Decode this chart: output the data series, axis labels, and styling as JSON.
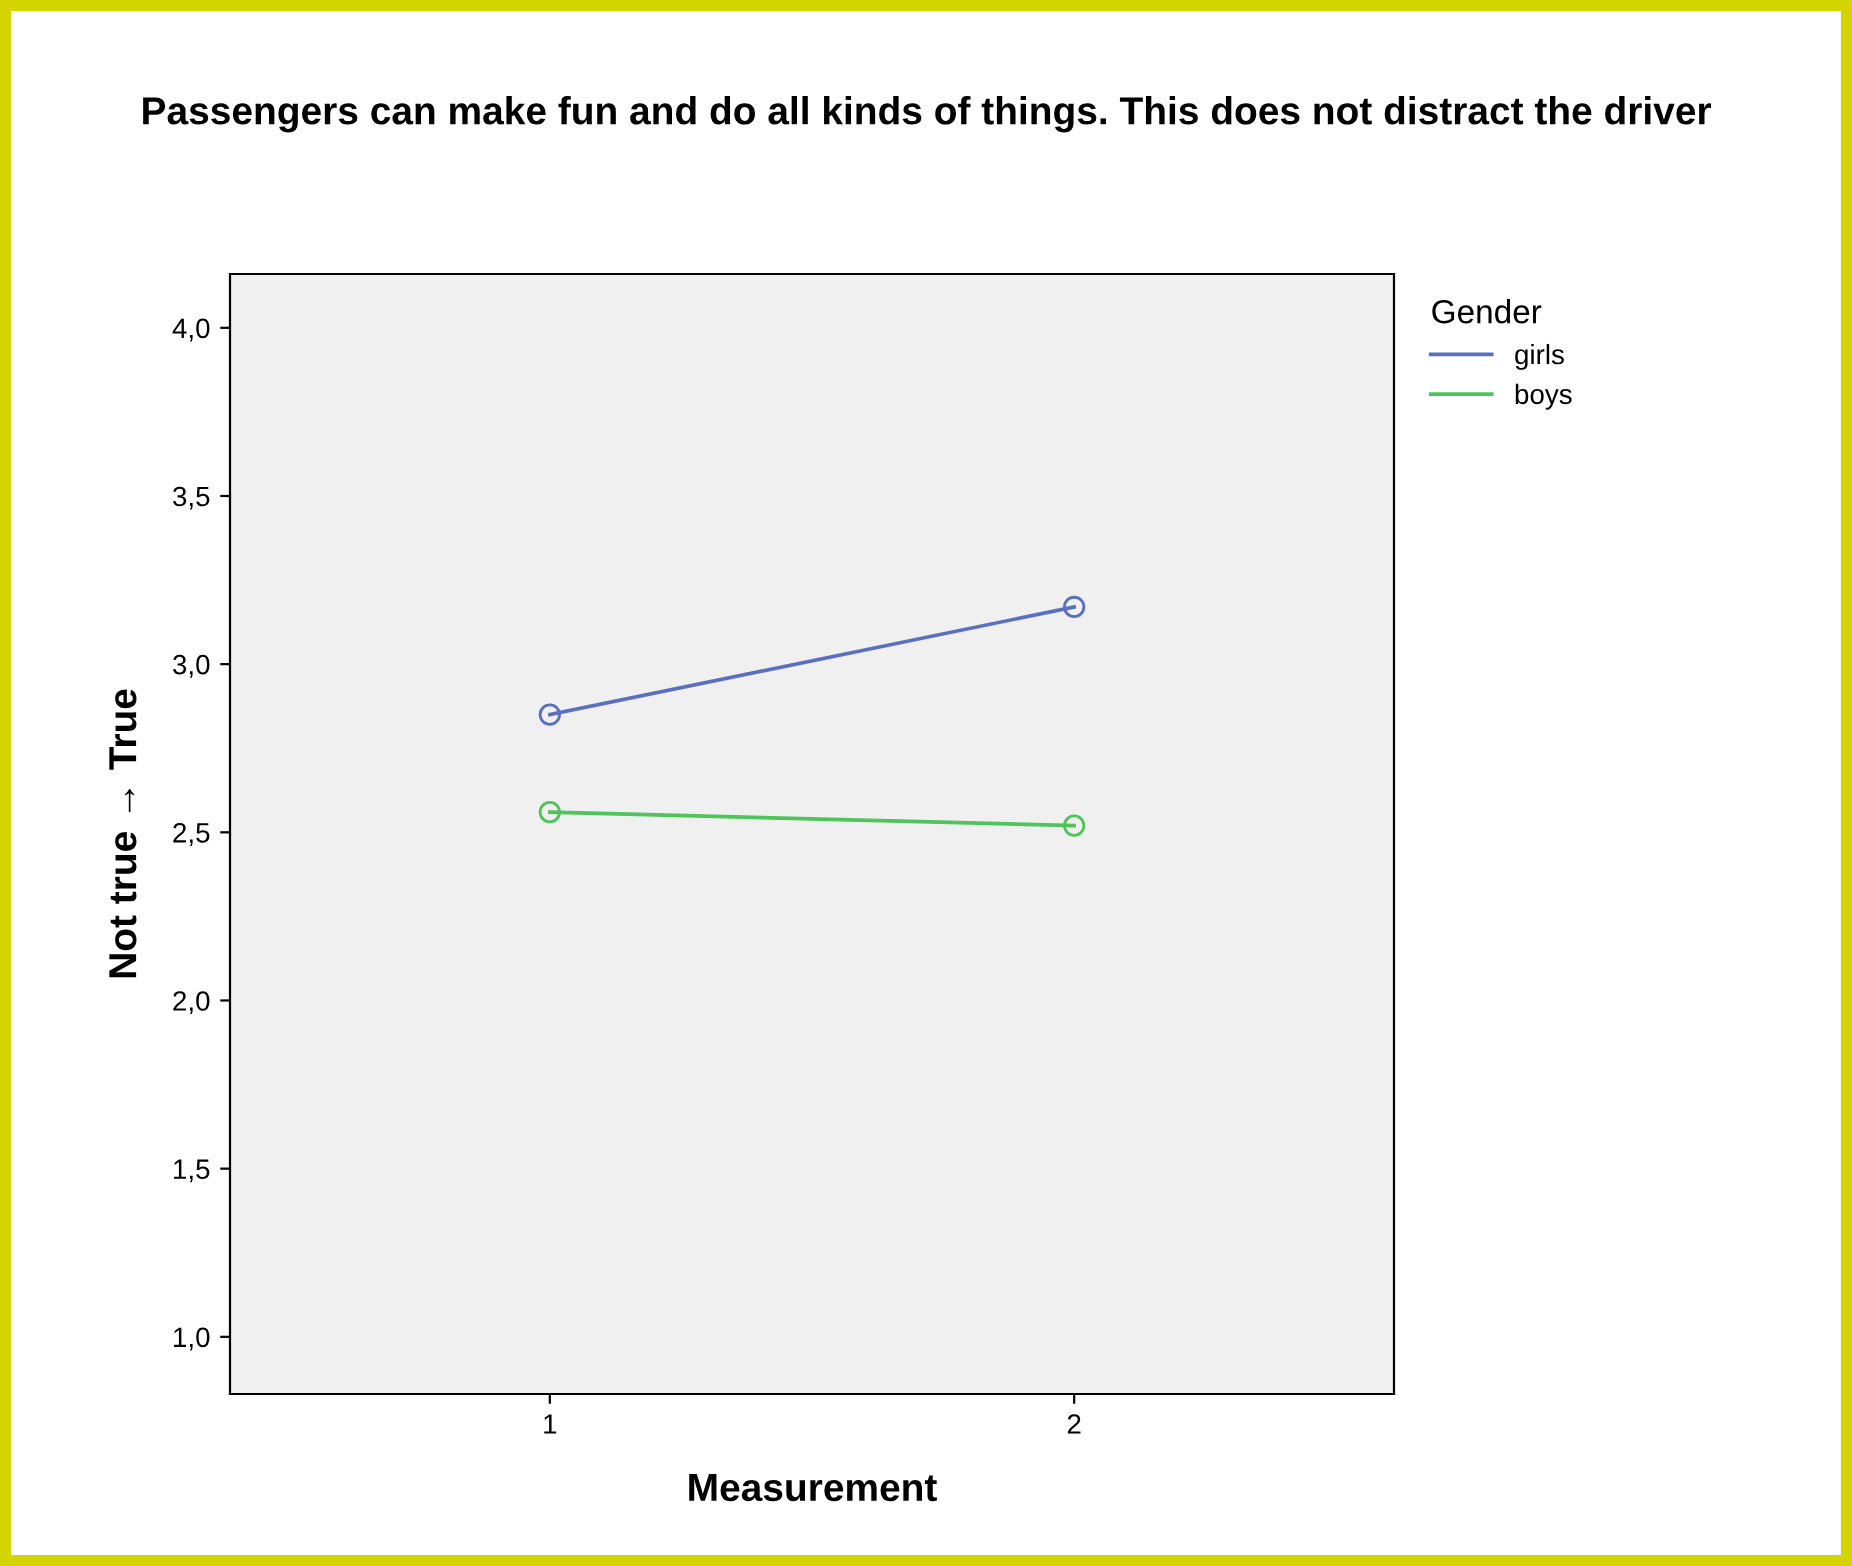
{
  "chart_data": {
    "type": "line",
    "title": "Passengers can make fun and do all kinds of things. This does not distract the driver",
    "xlabel": "Measurement",
    "ylabel": "Not true → True",
    "legend_title": "Gender",
    "categories": [
      "1",
      "2"
    ],
    "series": [
      {
        "name": "girls",
        "color": "#5a6fc0",
        "values": [
          2.85,
          3.17
        ]
      },
      {
        "name": "boys",
        "color": "#4fc45a",
        "values": [
          2.56,
          2.52
        ]
      }
    ],
    "ylim": [
      0.83,
      4.16
    ],
    "yticks": [
      {
        "value": 1.0,
        "label": "1,0"
      },
      {
        "value": 1.5,
        "label": "1,5"
      },
      {
        "value": 2.0,
        "label": "2,0"
      },
      {
        "value": 2.5,
        "label": "2,5"
      },
      {
        "value": 3.0,
        "label": "3,0"
      },
      {
        "value": 3.5,
        "label": "3,5"
      },
      {
        "value": 4.0,
        "label": "4,0"
      }
    ],
    "marker": "circle",
    "line_style": "solid",
    "legend": "top right",
    "grid": false
  }
}
